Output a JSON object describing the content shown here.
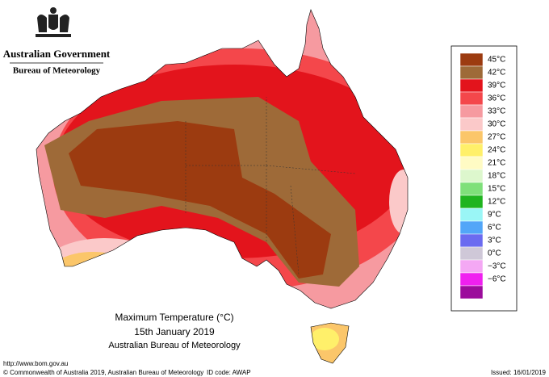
{
  "header": {
    "line1": "Australian Government",
    "line2": "Bureau of Meteorology"
  },
  "legend": {
    "labels": [
      "45°C",
      "42°C",
      "39°C",
      "36°C",
      "33°C",
      "30°C",
      "27°C",
      "24°C",
      "21°C",
      "18°C",
      "15°C",
      "12°C",
      "9°C",
      "6°C",
      "3°C",
      "0°C",
      "−3°C",
      "−6°C"
    ],
    "colors": [
      "#9c3b10",
      "#9e6a38",
      "#e3141c",
      "#f4474b",
      "#f69aa0",
      "#fbc9c9",
      "#fbc66a",
      "#fff06a",
      "#fffbc4",
      "#ddf7cd",
      "#7fe07a",
      "#1fb41f",
      "#9af6f6",
      "#52a6f8",
      "#6b6bf0",
      "#cfc8d8",
      "#f4a8f4",
      "#f020f0",
      "#9c0c9c"
    ]
  },
  "caption": {
    "title": "Maximum Temperature (°C)",
    "date": "15th January 2019",
    "source": "Australian Bureau of Meteorology"
  },
  "footer": {
    "url": "http://www.bom.gov.au",
    "copyright": "© Commonwealth of Australia 2019, Australian Bureau of Meteorology",
    "id_code": "ID code: AWAP",
    "issued": "Issued: 16/01/2019"
  }
}
